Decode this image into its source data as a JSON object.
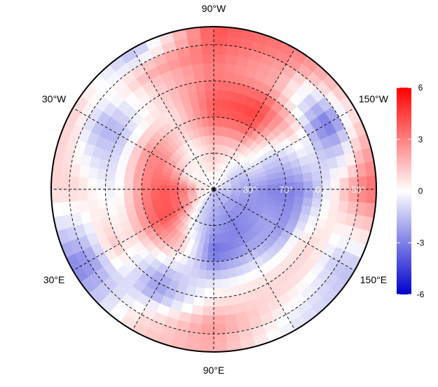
{
  "map": {
    "projection": "north polar stereographic",
    "lon_labels": [
      {
        "text": "90°W",
        "lon": 270
      },
      {
        "text": "150°W",
        "lon": 210
      },
      {
        "text": "150°E",
        "lon": 150
      },
      {
        "text": "90°E",
        "lon": 90
      },
      {
        "text": "30°E",
        "lon": 30
      },
      {
        "text": "30°W",
        "lon": 330
      }
    ],
    "lat_labels": [
      {
        "text": "80°",
        "lat": 80
      },
      {
        "text": "70°",
        "lat": 70
      },
      {
        "text": "60°",
        "lat": 60
      },
      {
        "text": "50°",
        "lat": 50
      }
    ],
    "grid_lats": [
      80,
      70,
      60,
      50
    ],
    "grid_lons": [
      0,
      30,
      60,
      90,
      120,
      150,
      180,
      210,
      240,
      270,
      300,
      330
    ],
    "lat_min": 45
  },
  "chart_data": {
    "type": "heatmap",
    "lats": [
      87.5,
      82.5,
      77.5,
      72.5,
      67.5,
      62.5,
      57.5,
      52.5,
      47.5
    ],
    "lons": [
      0,
      30,
      60,
      90,
      120,
      150,
      180,
      210,
      240,
      270,
      300,
      330
    ],
    "values": [
      [
        0,
        0,
        -1,
        -1.5,
        -1.5,
        -1.5,
        -1,
        -0.5,
        0,
        0,
        0,
        0.5
      ],
      [
        3,
        2,
        -1,
        -2,
        -2.5,
        -2.5,
        -2,
        -1.5,
        0,
        1,
        0.5,
        0
      ],
      [
        4,
        4,
        0,
        -2.5,
        -3,
        -2.5,
        -2.5,
        -0.5,
        1,
        1.5,
        0,
        2
      ],
      [
        3.5,
        4,
        1.5,
        -3.5,
        -2.5,
        -2,
        -3,
        -1,
        3,
        3,
        1,
        3
      ],
      [
        1.5,
        2,
        0,
        -2,
        -1,
        -2.5,
        -3,
        -0.5,
        4.5,
        4,
        0.5,
        2
      ],
      [
        -0.5,
        0.5,
        -2,
        0,
        0.5,
        0.5,
        -2,
        0.5,
        4,
        3.5,
        1,
        -1
      ],
      [
        0,
        1.5,
        -2.5,
        1,
        1,
        1,
        0,
        -2.5,
        2,
        3,
        1,
        -2
      ],
      [
        1,
        -2,
        0,
        2.5,
        0.5,
        -1,
        2,
        -3.5,
        2,
        3.5,
        2,
        -1.5
      ],
      [
        1,
        -3,
        1,
        2,
        -0.5,
        -1.5,
        3.5,
        0.5,
        3,
        4,
        -1.5,
        1
      ]
    ],
    "colorbar": {
      "ticks": [
        "6",
        "3",
        "0",
        "-3",
        "-6"
      ],
      "range": [
        -6,
        6
      ],
      "colors": {
        "low": "#0000cd",
        "mid": "#ffffff",
        "high": "#ff0000"
      }
    }
  }
}
